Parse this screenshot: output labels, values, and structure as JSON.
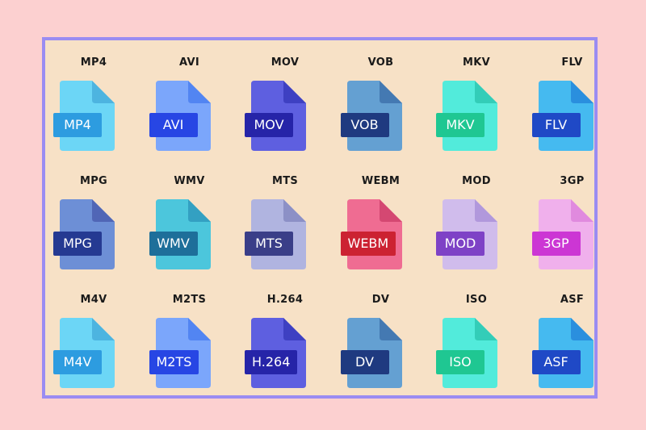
{
  "formats": [
    {
      "name": "MP4",
      "caption": "MP4",
      "label": "MP4",
      "body": "#6cd6f6",
      "fold": "#4db4e0",
      "badge": "#2d9ce0"
    },
    {
      "name": "AVI",
      "caption": "AVI",
      "label": "AVI",
      "body": "#7ba6fb",
      "fold": "#5285f2",
      "badge": "#2746e4"
    },
    {
      "name": "MOV",
      "caption": "MOV",
      "label": "MOV",
      "body": "#5e5fe0",
      "fold": "#3e40c2",
      "badge": "#2624a8"
    },
    {
      "name": "VOB",
      "caption": "VOB",
      "label": "VOB",
      "body": "#64a0d2",
      "fold": "#4479b2",
      "badge": "#1f3a80"
    },
    {
      "name": "MKV",
      "caption": "MKV",
      "label": "MKV",
      "body": "#52ebdb",
      "fold": "#33cdb8",
      "badge": "#1fc792"
    },
    {
      "name": "FLV",
      "caption": "FLV",
      "label": "FLV",
      "body": "#45baf0",
      "fold": "#2a8fde",
      "badge": "#1f49c6"
    },
    {
      "name": "MPG",
      "caption": "MPG",
      "label": "MPG",
      "body": "#6d8fd6",
      "fold": "#5066b6",
      "badge": "#253a92"
    },
    {
      "name": "WMV",
      "caption": "WMV",
      "label": "WMV",
      "body": "#4cc6dc",
      "fold": "#33a0c2",
      "badge": "#1e6f9a"
    },
    {
      "name": "MTS",
      "caption": "MTS",
      "label": "MTS",
      "body": "#b0b4e0",
      "fold": "#8c90c6",
      "badge": "#3a3e88"
    },
    {
      "name": "WEBM",
      "caption": "WEBM",
      "label": "WEBM",
      "body": "#ef6c92",
      "fold": "#d44872",
      "badge": "#cc2232"
    },
    {
      "name": "MOD",
      "caption": "MOD",
      "label": "MOD",
      "body": "#d0bcec",
      "fold": "#b198dc",
      "badge": "#7e42c6"
    },
    {
      "name": "3GP",
      "caption": "3GP",
      "label": "3GP",
      "body": "#f0b0ec",
      "fold": "#e08ade",
      "badge": "#cc36d4"
    },
    {
      "name": "M4V",
      "caption": "M4V",
      "label": "M4V",
      "body": "#6cd6f6",
      "fold": "#4db4e0",
      "badge": "#2d9ce0"
    },
    {
      "name": "M2TS",
      "caption": "M2TS",
      "label": "M2TS",
      "body": "#7ba6fb",
      "fold": "#5285f2",
      "badge": "#2746e4"
    },
    {
      "name": "H.264",
      "caption": "H.264",
      "label": "H.264",
      "body": "#5e5fe0",
      "fold": "#3e40c2",
      "badge": "#2624a8"
    },
    {
      "name": "DV",
      "caption": "DV",
      "label": "DV",
      "body": "#64a0d2",
      "fold": "#4479b2",
      "badge": "#1f3a80"
    },
    {
      "name": "ISO",
      "caption": "ISO",
      "label": "ISO",
      "body": "#52ebdb",
      "fold": "#33cdb8",
      "badge": "#1fc792"
    },
    {
      "name": "ASF",
      "caption": "ASF",
      "label": "ASF",
      "body": "#45baf0",
      "fold": "#2a8fde",
      "badge": "#1f49c6"
    }
  ],
  "icon": "file-icon"
}
